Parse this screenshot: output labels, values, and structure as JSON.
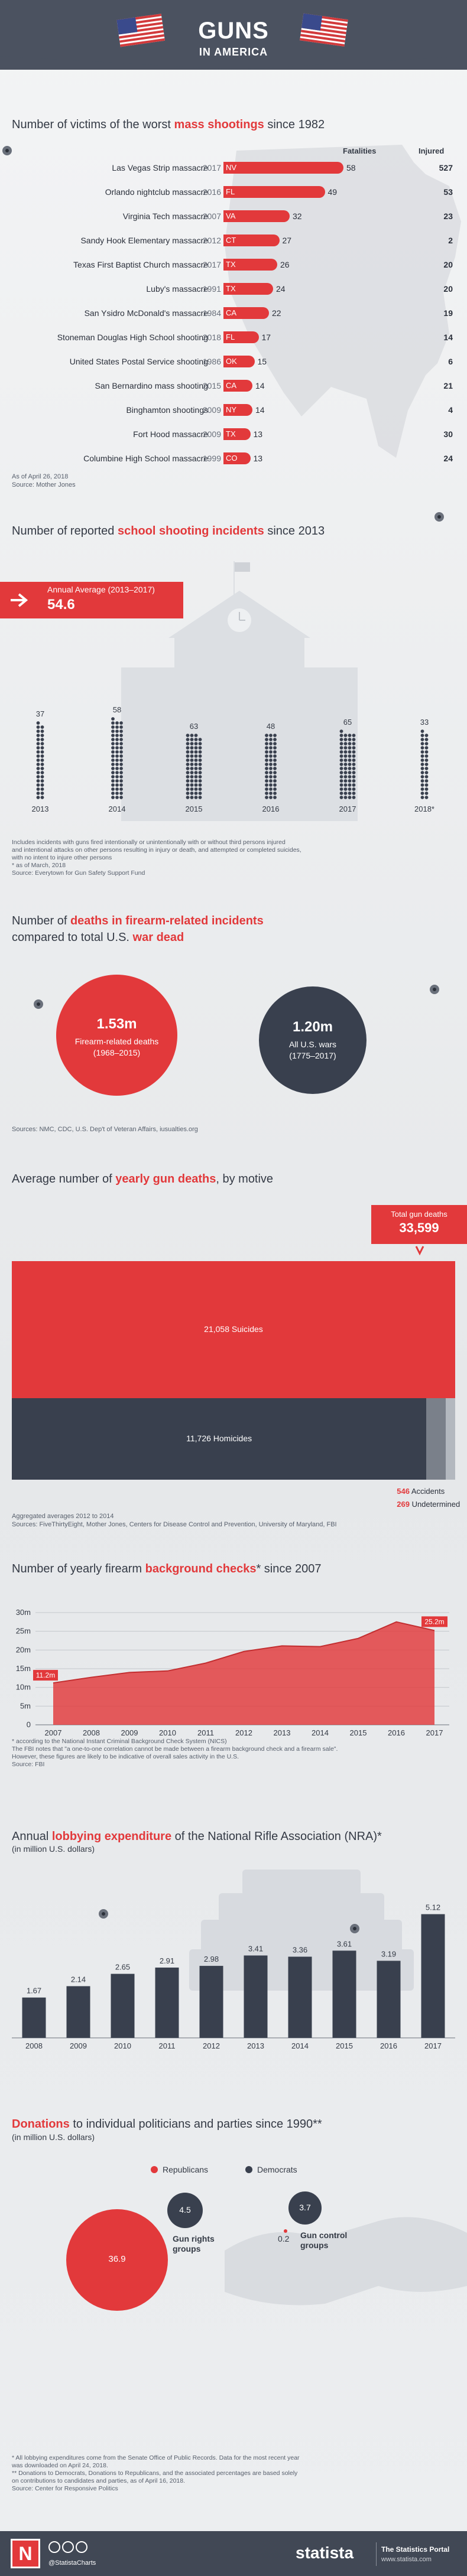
{
  "header": {
    "title": "GUNS",
    "subtitle": "IN AMERICA"
  },
  "colors": {
    "red": "#e2393b",
    "navy": "#39404e",
    "header": "#4b5260",
    "grey": "#b3b8bf"
  },
  "s1": {
    "title_pre": "Number of victims of the worst ",
    "title_hl": "mass shootings",
    "title_post": " since 1982",
    "col_fat": "Fatalities",
    "col_inj": "Injured",
    "notes": [
      "As of April 26, 2018",
      "Source: Mother Jones"
    ],
    "rows": [
      {
        "name": "Las Vegas Strip massacre",
        "year": "2017",
        "state": "NV",
        "fat": 58,
        "inj": "527"
      },
      {
        "name": "Orlando nightclub massacre",
        "year": "2016",
        "state": "FL",
        "fat": 49,
        "inj": "53"
      },
      {
        "name": "Virginia Tech massacre",
        "year": "2007",
        "state": "VA",
        "fat": 32,
        "inj": "23"
      },
      {
        "name": "Sandy Hook Elementary massacre",
        "year": "2012",
        "state": "CT",
        "fat": 27,
        "inj": "2"
      },
      {
        "name": "Texas First Baptist Church massacre",
        "year": "2017",
        "state": "TX",
        "fat": 26,
        "inj": "20"
      },
      {
        "name": "Luby's massacre",
        "year": "1991",
        "state": "TX",
        "fat": 24,
        "inj": "20"
      },
      {
        "name": "San Ysidro McDonald's massacre",
        "year": "1984",
        "state": "CA",
        "fat": 22,
        "inj": "19"
      },
      {
        "name": "Stoneman Douglas High School shooting",
        "year": "2018",
        "state": "FL",
        "fat": 17,
        "inj": "14"
      },
      {
        "name": "United States Postal Service shooting",
        "year": "1986",
        "state": "OK",
        "fat": 15,
        "inj": "6"
      },
      {
        "name": "San Bernardino mass shooting",
        "year": "2015",
        "state": "CA",
        "fat": 14,
        "inj": "21"
      },
      {
        "name": "Binghamton shootings",
        "year": "2009",
        "state": "NY",
        "fat": 14,
        "inj": "4"
      },
      {
        "name": "Fort Hood massacre",
        "year": "2009",
        "state": "TX",
        "fat": 13,
        "inj": "30"
      },
      {
        "name": "Columbine High School massacre",
        "year": "1999",
        "state": "CO",
        "fat": 13,
        "inj": "24"
      }
    ]
  },
  "s2": {
    "title_pre": "Number of reported ",
    "title_hl": "school shooting incidents",
    "title_post": " since 2013",
    "avg_label": "Annual Average (2013–2017)",
    "avg_value": "54.6",
    "notes": [
      "Includes incidents with guns fired intentionally or unintentionally with or without third persons injured",
      "and intentional attacks on other persons resulting in injury or death, and attempted or completed suicides,",
      "with no intent to injure other persons",
      "* as of March, 2018",
      "Source: Everytown for Gun Safety Support Fund"
    ]
  },
  "s3": {
    "title_pre": "Number of ",
    "title_hl": "deaths in firearm-related incidents",
    "title_line2_pre": "compared to total U.S. ",
    "title_line2_hl": "war dead",
    "left_value": "1.53m",
    "left_label1": "Firearm-related deaths",
    "left_label2": "(1968–2015)",
    "right_value": "1.20m",
    "right_label1": "All U.S. wars",
    "right_label2": "(1775–2017)",
    "source": "Sources: NMC, CDC, U.S. Dep't of Veteran Affairs, iusualties.org"
  },
  "s4": {
    "title_pre": "Average number of ",
    "title_hl": "yearly gun deaths",
    "title_post": ", by motive",
    "total_label": "Total gun deaths",
    "total_value": "33,599",
    "suicides_value": "21,058",
    "suicides_label": "Suicides",
    "homicides_value": "11,726",
    "homicides_label": "Homicides",
    "accidents_value": "546",
    "accidents_label": "Accidents",
    "undetermined_value": "269",
    "undetermined_label": "Undetermined",
    "notes": [
      "Aggregated averages 2012 to 2014",
      "Sources: FiveThirtyEight, Mother Jones, Centers for Disease Control and Prevention, University of Maryland, FBI"
    ]
  },
  "s5": {
    "title_pre": "Number of yearly firearm ",
    "title_hl": "background checks",
    "title_post": "* since 2007",
    "label_start": "11.2m",
    "label_end": "25.2m",
    "notes": [
      "* according to the National Instant Criminal Background Check System (NICS)",
      "The FBI notes that \"a one-to-one correlation cannot be made between a firearm background check and a firearm sale\".",
      "However, these figures are likely to be indicative of overall sales activity in the U.S.",
      "Source: FBI"
    ]
  },
  "s6": {
    "title_pre": "Annual ",
    "title_hl": "lobbying expenditure",
    "title_post": " of the National Rifle Association (NRA)*",
    "subtitle": "(in million U.S. dollars)"
  },
  "s7": {
    "title_hl": "Donations",
    "title_post": " to individual politicians and parties since 1990**",
    "subtitle": "(in million U.S. dollars)",
    "legend_rep": "Republicans",
    "legend_dem": "Democrats",
    "rep_value": "36.9",
    "dem_value": "4.5",
    "grp1_label1": "Gun rights",
    "grp1_label2": "groups",
    "rep2_value": "0.2",
    "dem2_value": "3.7",
    "grp2_label1": "Gun control",
    "grp2_label2": "groups",
    "notes": [
      "* All lobbying expenditures come from the Senate Office of Public Records. Data for the most recent year",
      "was downloaded on April 24, 2018.",
      "** Donations to Democrats, Donations to Republicans, and the associated percentages are based solely",
      "on contributions to candidates and parties, as of April 16, 2018.",
      "Source: Center for Responsive Politics"
    ]
  },
  "footer": {
    "handle": "@StatistaCharts",
    "brand": "statista",
    "portal": "The Statistics Portal",
    "url": "www.statista.com"
  },
  "chart_data": [
    {
      "type": "bar",
      "title": "Number of victims of the worst mass shootings since 1982",
      "categories": [
        "Las Vegas Strip massacre",
        "Orlando nightclub massacre",
        "Virginia Tech massacre",
        "Sandy Hook Elementary massacre",
        "Texas First Baptist Church massacre",
        "Luby's massacre",
        "San Ysidro McDonald's massacre",
        "Stoneman Douglas High School shooting",
        "United States Postal Service shooting",
        "San Bernardino mass shooting",
        "Binghamton shootings",
        "Fort Hood massacre",
        "Columbine High School massacre"
      ],
      "series": [
        {
          "name": "Fatalities",
          "values": [
            58,
            49,
            32,
            27,
            26,
            24,
            22,
            17,
            15,
            14,
            14,
            13,
            13
          ]
        },
        {
          "name": "Injured",
          "values": [
            527,
            53,
            23,
            2,
            20,
            20,
            19,
            14,
            6,
            21,
            4,
            30,
            24
          ]
        }
      ]
    },
    {
      "type": "bar",
      "title": "Number of reported school shooting incidents since 2013",
      "categories": [
        "2013",
        "2014",
        "2015",
        "2016",
        "2017",
        "2018*"
      ],
      "values": [
        37,
        58,
        63,
        48,
        65,
        33
      ]
    },
    {
      "type": "bar",
      "title": "Average number of yearly gun deaths, by motive",
      "categories": [
        "Suicides",
        "Homicides",
        "Accidents",
        "Undetermined"
      ],
      "values": [
        21058,
        11726,
        546,
        269
      ]
    },
    {
      "type": "area",
      "title": "Number of yearly firearm background checks* since 2007",
      "x": [
        "2007",
        "2008",
        "2009",
        "2010",
        "2011",
        "2012",
        "2013",
        "2014",
        "2015",
        "2016",
        "2017"
      ],
      "values": [
        11.2,
        12.7,
        14.0,
        14.4,
        16.5,
        19.6,
        21.1,
        20.9,
        23.1,
        27.5,
        25.2
      ],
      "ylim": [
        0,
        30
      ],
      "yticks": [
        0,
        5,
        10,
        15,
        20,
        25,
        30
      ],
      "ytick_labels": [
        "0",
        "5m",
        "10m",
        "15m",
        "20m",
        "25m",
        "30m"
      ],
      "grid": true
    },
    {
      "type": "bar",
      "title": "Annual lobbying expenditure of the National Rifle Association (NRA)*",
      "categories": [
        "2008",
        "2009",
        "2010",
        "2011",
        "2012",
        "2013",
        "2014",
        "2015",
        "2016",
        "2017"
      ],
      "values": [
        1.67,
        2.14,
        2.65,
        2.91,
        2.98,
        3.41,
        3.36,
        3.61,
        3.19,
        5.12
      ],
      "ylim": [
        0,
        5.5
      ]
    }
  ]
}
